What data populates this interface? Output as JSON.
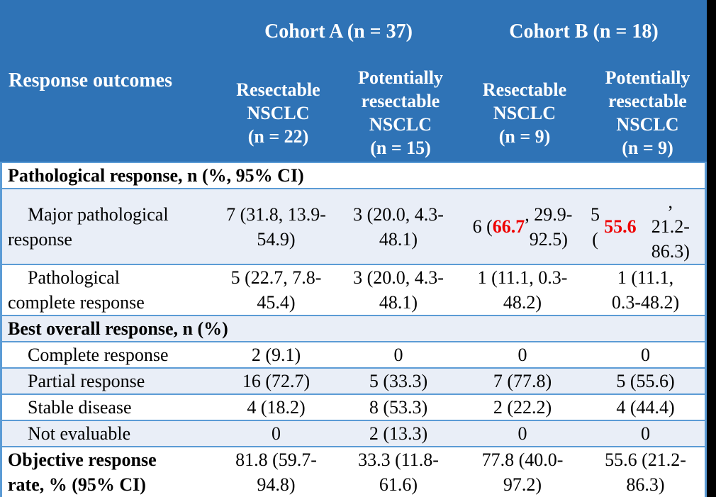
{
  "colors": {
    "header_blue": "#2F73B6",
    "grid_line_blue": "#5B9BD5",
    "alt_row_blue": "#E9EEF7",
    "highlight_red": "#EE0000",
    "outer_frame_black": "#000000"
  },
  "header": {
    "response_outcomes": "Response outcomes",
    "cohort_a": "Cohort A (n = 37)",
    "cohort_b": "Cohort B (n = 18)",
    "subheaders": {
      "a_resectable": "Resectable\nNSCLC\n(n = 22)",
      "a_potentially_resectable": "Potentially\nresectable\nNSCLC\n(n = 15)",
      "b_resectable": "Resectable\nNSCLC\n(n = 9)",
      "b_potentially_resectable": "Potentially\nresectable\nNSCLC\n(n = 9)"
    }
  },
  "sections": {
    "pathological": "Pathological response, n (%, 95% CI)",
    "best_overall": "Best overall response, n (%)"
  },
  "rows": {
    "major_pathological": {
      "label": "Major pathological\nresponse",
      "v1": "7 (31.8, 13.9-\n54.9)",
      "v2": "3 (20.0, 4.3-\n48.1)",
      "v3_pre": "6 (",
      "v3_red": "66.7",
      "v3_post": ", 29.9-\n92.5)",
      "v4_pre": "5 (",
      "v4_red": "55.6",
      "v4_post": ",\n21.2-86.3)"
    },
    "pathological_complete": {
      "label": "Pathological\ncomplete response",
      "values": [
        "5 (22.7, 7.8-\n45.4)",
        "3 (20.0, 4.3-\n48.1)",
        "1 (11.1, 0.3-\n48.2)",
        "1 (11.1,\n0.3-48.2)"
      ]
    },
    "complete_response": {
      "label": "Complete response",
      "values": [
        "2 (9.1)",
        "0",
        "0",
        "0"
      ]
    },
    "partial_response": {
      "label": "Partial response",
      "values": [
        "16 (72.7)",
        "5 (33.3)",
        "7 (77.8)",
        "5 (55.6)"
      ]
    },
    "stable_disease": {
      "label": "Stable disease",
      "values": [
        "4 (18.2)",
        "8 (53.3)",
        "2 (22.2)",
        "4 (44.4)"
      ]
    },
    "not_evaluable": {
      "label": "Not evaluable",
      "values": [
        "0",
        "2 (13.3)",
        "0",
        "0"
      ]
    },
    "objective_response_rate": {
      "label": "Objective response\nrate, % (95% CI)",
      "values": [
        "81.8 (59.7-\n94.8)",
        "33.3 (11.8-\n61.6)",
        "77.8 (40.0-\n97.2)",
        "55.6 (21.2-\n86.3)"
      ]
    }
  }
}
